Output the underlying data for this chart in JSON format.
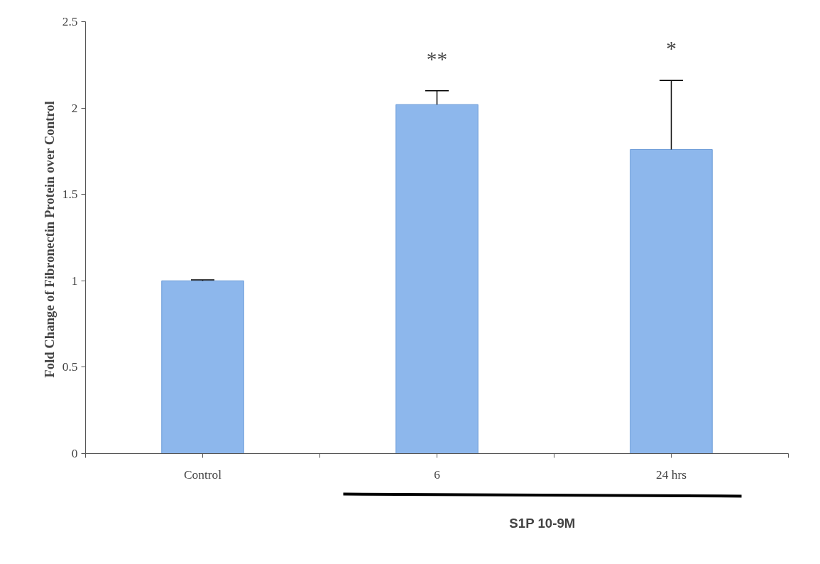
{
  "chart_data": {
    "type": "bar",
    "ylabel": "Fold Change of Fibronectin  Protein over Control",
    "categories": [
      "Control",
      "6",
      "24 hrs"
    ],
    "values": [
      1.0,
      2.02,
      1.76
    ],
    "errors": [
      [
        1.0,
        1.005
      ],
      [
        2.02,
        2.1
      ],
      [
        1.76,
        2.16
      ]
    ],
    "color": "#8db7ec",
    "ylim": [
      0,
      2.5
    ],
    "yticks": [
      0,
      0.5,
      1,
      1.5,
      2,
      2.5
    ],
    "grid": false,
    "annotations": [
      {
        "text": "**",
        "x": "6",
        "y": 2.1
      },
      {
        "text": "*",
        "x": "24 hrs",
        "y": 2.16
      },
      "S1P 10-9M"
    ]
  }
}
